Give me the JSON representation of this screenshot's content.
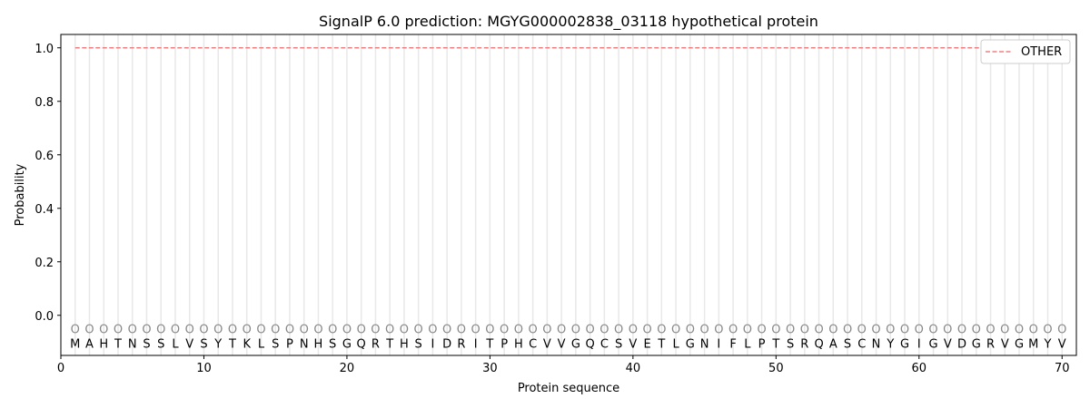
{
  "chart_data": {
    "type": "line",
    "title": "SignalP 6.0 prediction: MGYG000002838_03118 hypothetical protein",
    "xlabel": "Protein sequence",
    "ylabel": "Probability",
    "xlim": [
      0,
      71
    ],
    "ylim": [
      -0.15,
      1.05
    ],
    "xticks": [
      0,
      10,
      20,
      30,
      40,
      50,
      60,
      70
    ],
    "yticks": [
      0.0,
      0.2,
      0.4,
      0.6,
      0.8,
      1.0
    ],
    "ytick_labels": [
      "0.0",
      "0.2",
      "0.4",
      "0.6",
      "0.8",
      "1.0"
    ],
    "grid": "vertical lines at each residue",
    "legend_placement": "top-right",
    "sequence": [
      "M",
      "A",
      "H",
      "T",
      "N",
      "S",
      "S",
      "L",
      "V",
      "S",
      "Y",
      "T",
      "K",
      "L",
      "S",
      "P",
      "N",
      "H",
      "S",
      "G",
      "Q",
      "R",
      "T",
      "H",
      "S",
      "I",
      "D",
      "R",
      "I",
      "T",
      "P",
      "H",
      "C",
      "V",
      "V",
      "G",
      "Q",
      "C",
      "S",
      "V",
      "E",
      "T",
      "L",
      "G",
      "N",
      "I",
      "F",
      "L",
      "P",
      "T",
      "S",
      "R",
      "Q",
      "A",
      "S",
      "C",
      "N",
      "Y",
      "G",
      "I",
      "G",
      "V",
      "D",
      "G",
      "R",
      "V",
      "G",
      "M",
      "Y",
      "V"
    ],
    "predicted_labels": "OOOOOOOOOOOOOOOOOOOOOOOOOOOOOOOOOOOOOOOOOOOOOOOOOOOOOOOOOOOOOOOOOOOOOO",
    "series": [
      {
        "name": "OTHER",
        "color": "#f08080",
        "style": "dashed",
        "x_range": [
          1,
          70
        ],
        "value": 1.0
      }
    ]
  }
}
